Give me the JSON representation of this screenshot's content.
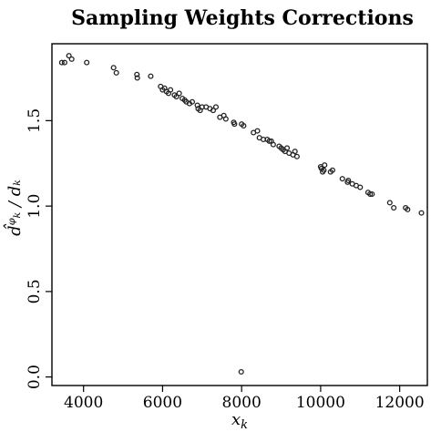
{
  "chart_data": {
    "type": "scatter",
    "title": "Sampling Weights Corrections",
    "xlabel": "x",
    "xlabel_sub": "k",
    "ylabel": "d̂ᵠₖ / dₖ",
    "xlim": [
      3200,
      12700
    ],
    "ylim": [
      -0.05,
      1.95
    ],
    "xticks": [
      4000,
      6000,
      8000,
      10000,
      12000
    ],
    "yticks": [
      0.0,
      0.5,
      1.0,
      1.5
    ],
    "ytick_labels": [
      "0.0",
      "0.5",
      "1.0",
      "1.5"
    ],
    "grid": false,
    "points": [
      {
        "x": 3450,
        "y": 1.84
      },
      {
        "x": 3520,
        "y": 1.84
      },
      {
        "x": 3630,
        "y": 1.88
      },
      {
        "x": 3700,
        "y": 1.86
      },
      {
        "x": 4080,
        "y": 1.84
      },
      {
        "x": 4760,
        "y": 1.81
      },
      {
        "x": 4830,
        "y": 1.78
      },
      {
        "x": 5350,
        "y": 1.77
      },
      {
        "x": 5360,
        "y": 1.75
      },
      {
        "x": 5700,
        "y": 1.76
      },
      {
        "x": 5950,
        "y": 1.7
      },
      {
        "x": 6000,
        "y": 1.68
      },
      {
        "x": 6050,
        "y": 1.69
      },
      {
        "x": 6100,
        "y": 1.67
      },
      {
        "x": 6150,
        "y": 1.66
      },
      {
        "x": 6200,
        "y": 1.68
      },
      {
        "x": 6300,
        "y": 1.65
      },
      {
        "x": 6350,
        "y": 1.64
      },
      {
        "x": 6420,
        "y": 1.66
      },
      {
        "x": 6500,
        "y": 1.63
      },
      {
        "x": 6560,
        "y": 1.62
      },
      {
        "x": 6600,
        "y": 1.61
      },
      {
        "x": 6680,
        "y": 1.6
      },
      {
        "x": 6750,
        "y": 1.61
      },
      {
        "x": 6880,
        "y": 1.59
      },
      {
        "x": 6900,
        "y": 1.57
      },
      {
        "x": 6950,
        "y": 1.56
      },
      {
        "x": 7000,
        "y": 1.58
      },
      {
        "x": 7100,
        "y": 1.58
      },
      {
        "x": 7200,
        "y": 1.57
      },
      {
        "x": 7280,
        "y": 1.56
      },
      {
        "x": 7350,
        "y": 1.58
      },
      {
        "x": 7450,
        "y": 1.52
      },
      {
        "x": 7550,
        "y": 1.53
      },
      {
        "x": 7600,
        "y": 1.51
      },
      {
        "x": 7800,
        "y": 1.49
      },
      {
        "x": 7820,
        "y": 1.48
      },
      {
        "x": 8000,
        "y": 1.48
      },
      {
        "x": 8050,
        "y": 1.47
      },
      {
        "x": 8300,
        "y": 1.43
      },
      {
        "x": 8400,
        "y": 1.44
      },
      {
        "x": 8450,
        "y": 1.4
      },
      {
        "x": 8550,
        "y": 1.39
      },
      {
        "x": 8650,
        "y": 1.39
      },
      {
        "x": 8700,
        "y": 1.38
      },
      {
        "x": 8750,
        "y": 1.38
      },
      {
        "x": 8800,
        "y": 1.36
      },
      {
        "x": 8950,
        "y": 1.35
      },
      {
        "x": 9000,
        "y": 1.34
      },
      {
        "x": 9050,
        "y": 1.33
      },
      {
        "x": 9100,
        "y": 1.32
      },
      {
        "x": 9150,
        "y": 1.34
      },
      {
        "x": 9200,
        "y": 1.31
      },
      {
        "x": 9300,
        "y": 1.3
      },
      {
        "x": 9350,
        "y": 1.32
      },
      {
        "x": 9400,
        "y": 1.29
      },
      {
        "x": 10000,
        "y": 1.23
      },
      {
        "x": 10020,
        "y": 1.22
      },
      {
        "x": 10050,
        "y": 1.2
      },
      {
        "x": 10080,
        "y": 1.21
      },
      {
        "x": 10100,
        "y": 1.24
      },
      {
        "x": 10250,
        "y": 1.2
      },
      {
        "x": 10300,
        "y": 1.21
      },
      {
        "x": 10550,
        "y": 1.16
      },
      {
        "x": 10680,
        "y": 1.14
      },
      {
        "x": 10700,
        "y": 1.15
      },
      {
        "x": 10800,
        "y": 1.13
      },
      {
        "x": 10900,
        "y": 1.12
      },
      {
        "x": 11000,
        "y": 1.11
      },
      {
        "x": 11200,
        "y": 1.08
      },
      {
        "x": 11250,
        "y": 1.07
      },
      {
        "x": 11300,
        "y": 1.07
      },
      {
        "x": 11750,
        "y": 1.02
      },
      {
        "x": 11850,
        "y": 0.99
      },
      {
        "x": 12150,
        "y": 0.99
      },
      {
        "x": 12200,
        "y": 0.98
      },
      {
        "x": 12550,
        "y": 0.96
      },
      {
        "x": 7990,
        "y": 0.03
      }
    ]
  }
}
